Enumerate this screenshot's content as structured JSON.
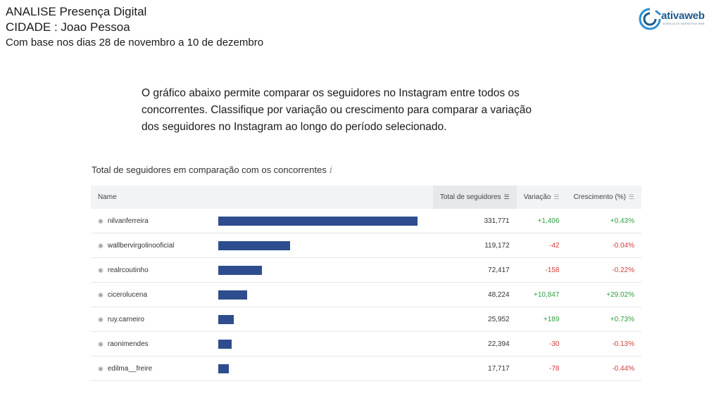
{
  "header": {
    "line1": "ANALISE Presença Digital",
    "line2": "CIDADE : Joao Pessoa",
    "line3": "Com base nos dias 28 de novembro a 10 de dezembro"
  },
  "logo": {
    "brand": "ativaweb",
    "tagline": "AGÊNCIA DE MARKETING WEB"
  },
  "intro": "O gráfico abaixo permite comparar os seguidores no Instagram entre todos os concorrentes. Classifique por variação ou crescimento para comparar a variação dos seguidores no Instagram ao longo do período selecionado.",
  "card": {
    "title": "Total de seguidores em comparação com os concorrentes",
    "info_glyph": "i"
  },
  "columns": {
    "name": "Name",
    "total": "Total de seguidores",
    "variation": "Variação",
    "growth": "Crescimento (%)"
  },
  "colors": {
    "bar": "#2e4d8f",
    "positive": "#2e9e3e",
    "negative": "#d33a3a"
  },
  "rows": [
    {
      "name": "nilvanferreira",
      "total": "331,771",
      "variation": "+1,406",
      "growth": "+0.43%"
    },
    {
      "name": "wallbervirgolinooficial",
      "total": "119,172",
      "variation": "-42",
      "growth": "-0.04%"
    },
    {
      "name": "realrcoutinho",
      "total": "72,417",
      "variation": "-158",
      "growth": "-0.22%"
    },
    {
      "name": "cicerolucena",
      "total": "48,224",
      "variation": "+10,847",
      "growth": "+29.02%"
    },
    {
      "name": "ruy.carneiro",
      "total": "25,952",
      "variation": "+189",
      "growth": "+0.73%"
    },
    {
      "name": "raonimendes",
      "total": "22,394",
      "variation": "-30",
      "growth": "-0.13%"
    },
    {
      "name": "edilma__freire",
      "total": "17,717",
      "variation": "-78",
      "growth": "-0.44%"
    }
  ],
  "chart_data": {
    "type": "bar",
    "categories": [
      "nilvanferreira",
      "wallbervirgolinooficial",
      "realrcoutinho",
      "cicerolucena",
      "ruy.carneiro",
      "raonimendes",
      "edilma__freire"
    ],
    "values": [
      331771,
      119172,
      72417,
      48224,
      25952,
      22394,
      17717
    ],
    "title": "Total de seguidores em comparação com os concorrentes",
    "orientation": "horizontal",
    "xlim": [
      0,
      331771
    ]
  }
}
